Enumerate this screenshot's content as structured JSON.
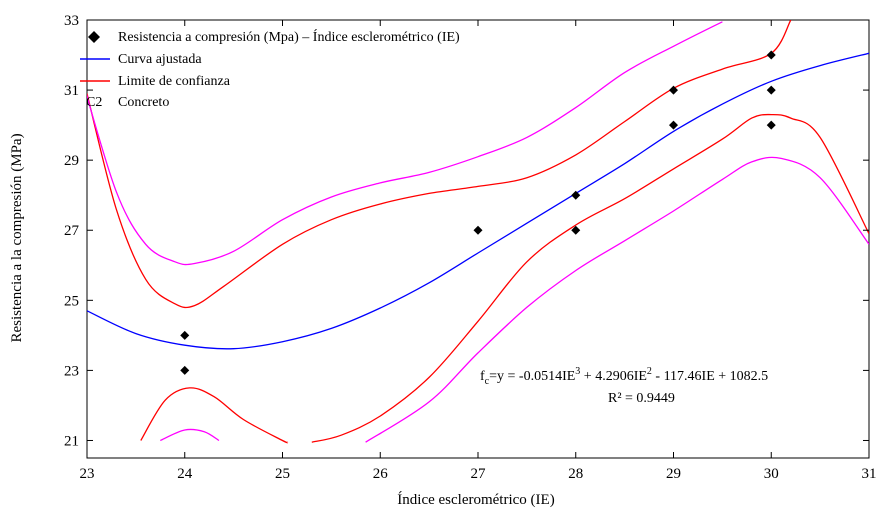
{
  "chart_data": {
    "type": "scatter",
    "xlabel": "Índice esclerométrico (IE)",
    "ylabel": "Resistencia a la compresión (MPa)",
    "xlim": [
      23,
      31
    ],
    "ylim": [
      20.5,
      33
    ],
    "xticks": [
      23,
      24,
      25,
      26,
      27,
      28,
      29,
      30,
      31
    ],
    "yticks": [
      21,
      23,
      25,
      27,
      29,
      31,
      33
    ],
    "grid": false,
    "legend_position": "top-left",
    "legend": [
      {
        "label": "Resistencia a compresión (Mpa) – Índice esclerométrico (IE)",
        "marker": "diamond",
        "color": "#000000"
      },
      {
        "label": "Curva ajustada",
        "marker": "line",
        "color": "#0000ff"
      },
      {
        "label": "Limite de confianza",
        "marker": "line",
        "color": "#ff0000"
      },
      {
        "label": "Concreto",
        "marker": "C2",
        "color": "#000000"
      }
    ],
    "points": [
      {
        "x": 24,
        "y": 24
      },
      {
        "x": 24,
        "y": 23
      },
      {
        "x": 27,
        "y": 27
      },
      {
        "x": 28,
        "y": 28
      },
      {
        "x": 28,
        "y": 27
      },
      {
        "x": 29,
        "y": 31
      },
      {
        "x": 29,
        "y": 30
      },
      {
        "x": 30,
        "y": 32
      },
      {
        "x": 30,
        "y": 31
      },
      {
        "x": 30,
        "y": 30
      }
    ],
    "fitted_curve": {
      "color": "#0000ff",
      "points": [
        [
          23,
          24.7
        ],
        [
          23.5,
          24.05
        ],
        [
          24,
          23.72
        ],
        [
          24.5,
          23.62
        ],
        [
          25,
          23.82
        ],
        [
          25.5,
          24.2
        ],
        [
          26,
          24.78
        ],
        [
          26.5,
          25.5
        ],
        [
          27,
          26.35
        ],
        [
          27.5,
          27.2
        ],
        [
          28,
          28.05
        ],
        [
          28.5,
          28.9
        ],
        [
          29,
          29.82
        ],
        [
          29.5,
          30.6
        ],
        [
          30,
          31.25
        ],
        [
          30.5,
          31.7
        ],
        [
          31,
          32.05
        ]
      ]
    },
    "confidence_limits": [
      {
        "color": "#ff0000",
        "points": [
          [
            23,
            30.9
          ],
          [
            23.3,
            27.6
          ],
          [
            23.6,
            25.6
          ],
          [
            23.9,
            24.9
          ],
          [
            24.1,
            24.85
          ],
          [
            24.4,
            25.4
          ],
          [
            25,
            26.6
          ],
          [
            25.5,
            27.3
          ],
          [
            26,
            27.75
          ],
          [
            26.5,
            28.05
          ],
          [
            27,
            28.25
          ],
          [
            27.5,
            28.5
          ],
          [
            28,
            29.15
          ],
          [
            28.5,
            30.1
          ],
          [
            29,
            31.05
          ],
          [
            29.5,
            31.6
          ],
          [
            30,
            32.05
          ],
          [
            30.2,
            33
          ]
        ]
      },
      {
        "color": "#ff0000",
        "points": [
          [
            23.55,
            21
          ],
          [
            23.8,
            22.15
          ],
          [
            24.05,
            22.5
          ],
          [
            24.3,
            22.25
          ],
          [
            24.6,
            21.6
          ],
          [
            25,
            21
          ],
          [
            25.05,
            20.95
          ]
        ]
      },
      {
        "color": "#ff0000",
        "points": [
          [
            25.3,
            20.95
          ],
          [
            25.6,
            21.15
          ],
          [
            26,
            21.7
          ],
          [
            26.5,
            22.8
          ],
          [
            27,
            24.4
          ],
          [
            27.5,
            26.1
          ],
          [
            28,
            27.15
          ],
          [
            28.5,
            27.9
          ],
          [
            29,
            28.75
          ],
          [
            29.5,
            29.6
          ],
          [
            29.8,
            30.2
          ],
          [
            30,
            30.3
          ],
          [
            30.2,
            30.2
          ],
          [
            30.5,
            29.65
          ],
          [
            31,
            26.9
          ]
        ]
      },
      {
        "color": "#ff00ff",
        "points": [
          [
            22.95,
            31.3
          ],
          [
            23.3,
            28.1
          ],
          [
            23.6,
            26.6
          ],
          [
            23.9,
            26.1
          ],
          [
            24.1,
            26.05
          ],
          [
            24.5,
            26.4
          ],
          [
            25,
            27.3
          ],
          [
            25.5,
            27.95
          ],
          [
            26,
            28.35
          ],
          [
            26.5,
            28.65
          ],
          [
            27,
            29.1
          ],
          [
            27.5,
            29.65
          ],
          [
            28,
            30.5
          ],
          [
            28.5,
            31.5
          ],
          [
            29,
            32.25
          ],
          [
            29.5,
            32.95
          ]
        ]
      },
      {
        "color": "#ff00ff",
        "points": [
          [
            23.75,
            21
          ],
          [
            24,
            21.3
          ],
          [
            24.2,
            21.25
          ],
          [
            24.35,
            21
          ]
        ]
      },
      {
        "color": "#ff00ff",
        "points": [
          [
            25.85,
            20.95
          ],
          [
            26.5,
            22.1
          ],
          [
            27,
            23.5
          ],
          [
            27.5,
            24.8
          ],
          [
            28,
            25.85
          ],
          [
            28.5,
            26.7
          ],
          [
            29,
            27.55
          ],
          [
            29.5,
            28.45
          ],
          [
            29.8,
            28.95
          ],
          [
            30.1,
            29.05
          ],
          [
            30.5,
            28.5
          ],
          [
            31,
            26.6
          ]
        ]
      }
    ],
    "annotations": {
      "equation": {
        "fc": "f",
        "fc_sub": "c",
        "eq_a": "=y = -0.0514IE",
        "sup1": "3",
        "eq_b": " + 4.2906IE",
        "sup2": "2",
        "eq_c": " - 117.46IE + 1082.5"
      },
      "r2": "R² = 0.9449"
    }
  }
}
